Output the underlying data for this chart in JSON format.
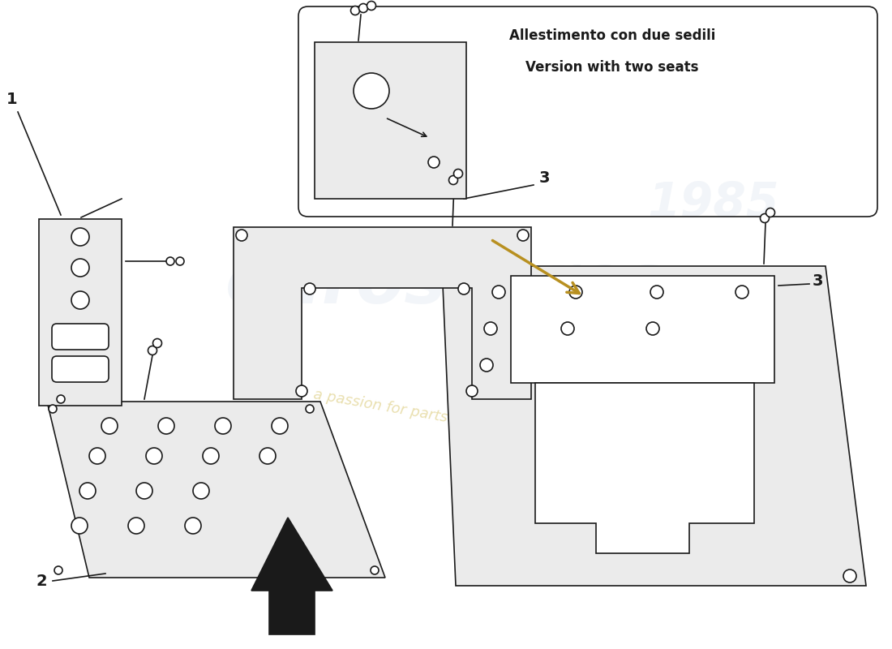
{
  "title_line1": "Allestimento con due sedili",
  "title_line2": "Version with two seats",
  "bg_color": "#ffffff",
  "line_color": "#1a1a1a",
  "fill_color": "#ebebeb",
  "wm_blue": "#c8d4e4",
  "wm_gold": "#d4c060",
  "figsize": [
    11.0,
    8.0
  ],
  "dpi": 100
}
